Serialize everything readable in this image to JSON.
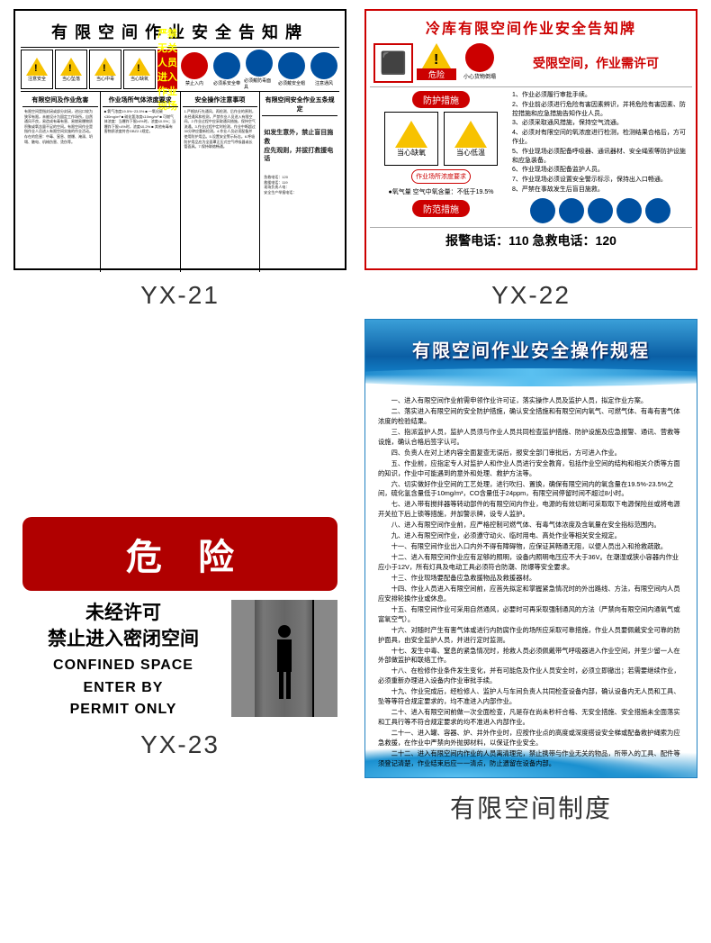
{
  "labels": {
    "yx21": "YX-21",
    "yx22": "YX-22",
    "yx23": "YX-23",
    "reg": "有限空间制度"
  },
  "yx21": {
    "title": "有限空间作业安全告知牌",
    "warn_boxes": [
      "注意安全",
      "当心坠落",
      "当心中毒",
      "当心缺氧"
    ],
    "banner": "严禁无关人员进入作业现场",
    "circ_labels": [
      "禁止入内",
      "必须系安全带",
      "必须戴防毒面具",
      "必须戴安全帽",
      "注意通风"
    ],
    "columns": [
      {
        "h": "有限空间及作业危害",
        "t": "有限空间是指封闭或部分封闭，进出口较为狭窄有限，未被设计为固定工作场所，自然通风不良，易造成有毒有害、易燃易爆物质积聚或氧含量不足的空间。有限空间作业是指作业人员进入有限空间实施的作业活动。存在的危害：中毒、窒息、燃爆、淹溺、坍塌、触电、机械伤害、烫伤等。"
      },
      {
        "h": "作业场所气体浓度要求",
        "t": "■ 氧气浓度19.5%~23.5%\n■ 一氧化碳≤30mg/m³\n■ 硫化氢浓度≤10mg/m³\n■ 可燃气体浓度：当爆炸下限≥4%时，浓度≤0.5%；当爆炸下限<4%时，浓度≤0.2%\n■ 其他有毒有害物质浓度符合GBZ2.1规定。"
      },
      {
        "h": "安全操作注意事项",
        "t": "1.严格执行先通风、再检测、后作业的原则，未经通风和检测，严禁作业人员进入有限空间。2.作业过程中应采取通风措施，保持空气流通。3.作业过程中定时检测，作业中断超过30分钟应重新检测。4.作业人员必须配备并使用防护用品。5.设置安全警示标志。6.呼吸防护用品应为全面罩正压式空气呼吸器或长管面具。7.保持联络畅通。"
      },
      {
        "h": "有限空间安全作业五条规定",
        "t": "一必须严格实行作业审批制度，严禁擅自进入有限空间作业。二必须做到先通风、再检测、后作业，严禁通风检测不合格作业。三必须配备个人防中毒窒息等防护装备，设置安全警示标识。四必须对作业人员进行安全培训。五必须制定应急措施，现场配备应急装备。"
      }
    ],
    "emergency_h": "如发生意外，禁止盲目施救\n应先观则，并拔打救援电话",
    "phones": [
      "急救电话：120",
      "救援电话：119",
      "现场负责人电：",
      "安全生产举报电话："
    ]
  },
  "yx22": {
    "title": "冷库有限空间作业安全告知牌",
    "danger": "危险",
    "circ": "小心货物倒塌",
    "subtitle": "受限空间，作业需许可",
    "pill1": "防护措施",
    "pair": [
      "当心缺氧",
      "当心低温"
    ],
    "meas": "作业场所浓度要求",
    "meas_txt": "●氧气量 空气中氧含量：不低于19.5%",
    "pill2": "防范措施",
    "rules": [
      "1、作业必须履行审批手续。",
      "2、作业前必须进行危险有害因素辨识，并将危险有害因素、防控措施和应急措施告知作业人员。",
      "3、必须采取通风措施，保持空气流通。",
      "4、必须对有限空间的氧浓度进行检测，检测结果合格后，方可作业。",
      "5、作业现场必须配备呼吸器、通讯器材、安全绳索等防护设施和应急装备。",
      "6、作业现场必须配备监护人员。",
      "7、作业现场必须设置安全警示标示，保持出入口畅通。",
      "8、严禁在事故发生后盲目施救。"
    ],
    "footer": "报警电话：110  急救电话：120"
  },
  "yx23": {
    "danger": "危险",
    "cn1": "未经许可",
    "cn2": "禁止进入密闭空间",
    "en1": "CONFINED SPACE",
    "en2": "ENTER BY",
    "en3": "PERMIT ONLY"
  },
  "reg": {
    "title": "有限空间作业安全操作规程",
    "items": [
      "一、进入有限空间作业前需申领作业许可证，落实操作人员及监护人员，拟定作业方案。",
      "二、落实进入有限空间的安全防护措施，确认安全措施和有限空间内氧气、可燃气体、有毒有害气体浓度的检验结果。",
      "三、指派监护人员，监护人员须与作业人员共同检查监护措施、防护设施及应急报警、通讯、营救等设施，确认合格后签字认可。",
      "四、负责人在对上述内容全面复查无误后，报安全部门审批后，方可进入作业。",
      "五、作业前，应指定专人对监护人和作业人员进行安全教育，包括作业空间的结构和相关介质等方面的知识，作业中可能遇到的意外和处理、救护方法等。",
      "六、切实做好作业空间的工艺处理，进行吹扫、置换，确保有限空间内的氧含量在19.5%-23.5%之间，硫化氢含量低于10mg/m³，CO含量低于24ppm，有限空间停留时间不超过8小时。",
      "七、进入带有搅拌器等转动部件的有限空间内作业，电源的有效切断可采取取下电源保险丝或将电源开关拉下后上锁等措施，并加警示牌，设专人监护。",
      "八、进入有限空间作业前，应严格控制可燃气体、有毒气体浓度及含氧量在安全指标范围内。",
      "九、进入有限空间作业，必须遵守动火、临时用电、高处作业等相关安全规定。",
      "十一、有限空间作业出入口内外不得有障碍物，应保证其畅通无阻，以便人员出入和抢救疏散。",
      "十二、进入有限空间作业应有足够的照明，设备内照明电压应不大于36V。在潮湿或狭小容器内作业应小于12V，所有灯具及电动工具必须符合防潮、防爆等安全要求。",
      "十三、作业现场要配备应急救援物品及救援器材。",
      "十四、作业人员进入有限空间前，应首先拟定和掌握紧急情况时的外出路线、方法，有限空间内人员应安排轮换作业或休息。",
      "十五、有限空间作业可采用自然通风，必要时可再采取强制通风的方法（严禁向有限空间内通氧气或富氧空气）。",
      "十六、对随时产生有害气体或进行内防腐作业的场所应采取可靠措施，作业人员要佩戴安全可靠的防护面具，由安全监护人员，并进行定时监测。",
      "十七、发生中毒、窒息的紧急情况时，抢救人员必须佩戴带气呼吸器进入作业空间，并至少留一人在外部做监护和联络工作。",
      "十八、在检修作业条件发生变化，并有可能危及作业人员安全时，必须立即撤出；若需要继续作业，必须重新办理进入设备内作业审批手续。",
      "十九、作业完成后，经检修人、监护人与车间负责人共同检查设备内部，确认设备内无人员和工具、坠等等符合规定要求的，均不准进入内部作业。",
      "二十、进入有限空间前做一次全面检查，凡是存在尚未秒杆合格、无安全措施、安全措施未全面落实和工具行等不符合规定要求的均不准进入内部作业。",
      "二十一、进入罐、容器、炉、井外作业时，应按作业点的高度或深度搭设安全梯或配备救护绳索为应急救援，在作业中严禁向外抛掷材料，以保证作业安全。",
      "二十二、进入有限空间内作业的人员离清理完，禁止携带与作业无关的物品，所带入的工具、配件等须登记清楚，作业结束后应一一清点，防止遗留在设备内部。"
    ]
  }
}
